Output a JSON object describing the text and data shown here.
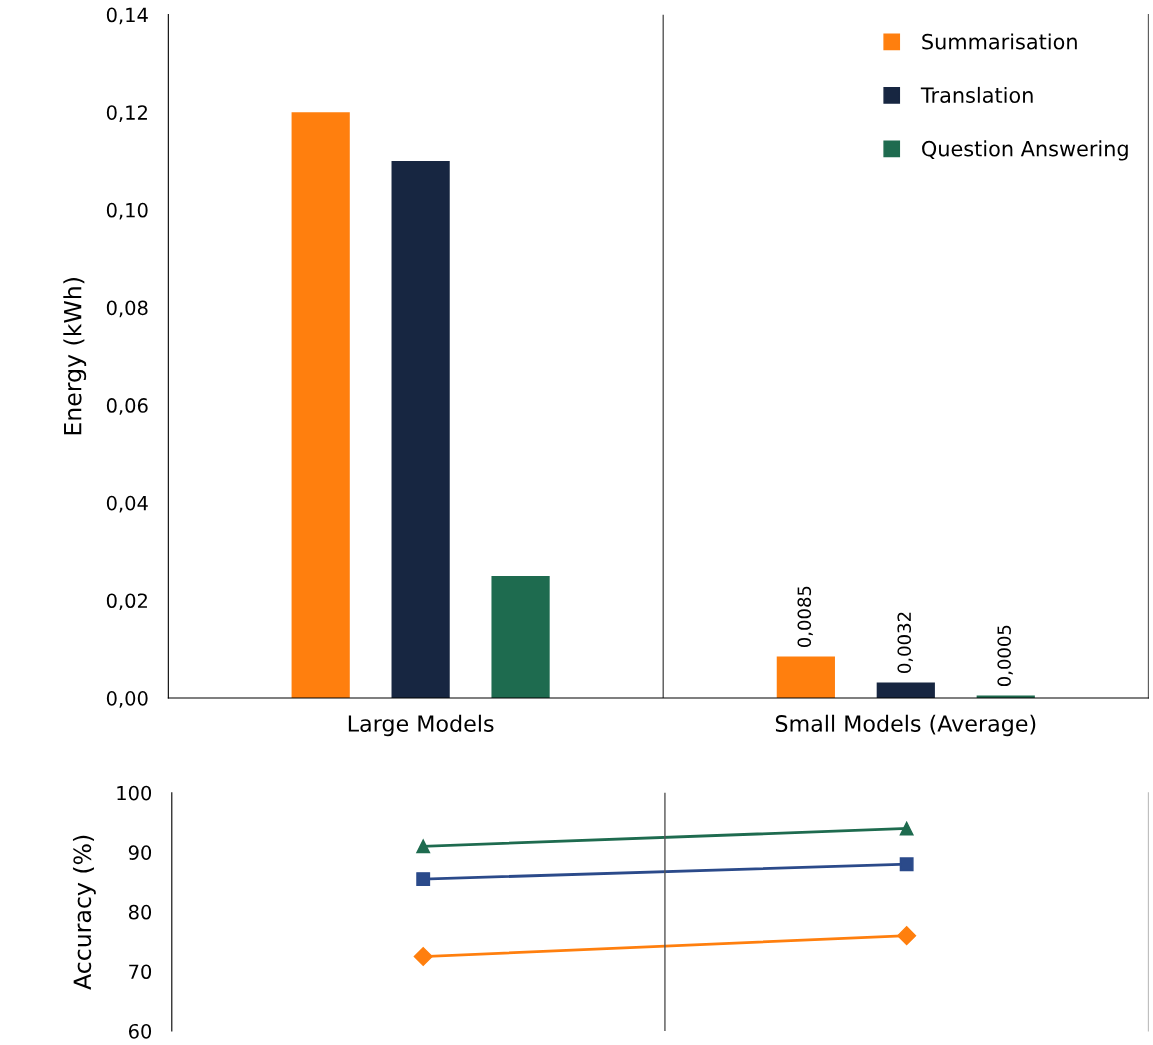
{
  "chart_data": [
    {
      "type": "bar",
      "ylabel": "Energy (kWh)",
      "categories": [
        "Large Models",
        "Small Models (Average)"
      ],
      "series": [
        {
          "name": "Summarisation",
          "color": "#ff7f0e",
          "values": [
            0.12,
            0.0085
          ],
          "value_labels": [
            null,
            "0,0085"
          ]
        },
        {
          "name": "Translation",
          "color": "#172641",
          "values": [
            0.11,
            0.0032
          ],
          "value_labels": [
            null,
            "0,0032"
          ]
        },
        {
          "name": "Question Answering",
          "color": "#1e6b4f",
          "values": [
            0.025,
            0.0005
          ],
          "value_labels": [
            null,
            "0,0005"
          ]
        }
      ],
      "ylim": [
        0,
        0.14
      ],
      "yticks": [
        {
          "value": 0,
          "label": "0,00"
        },
        {
          "value": 0.02,
          "label": "0,02"
        },
        {
          "value": 0.04,
          "label": "0,04"
        },
        {
          "value": 0.06,
          "label": "0,06"
        },
        {
          "value": 0.08,
          "label": "0,08"
        },
        {
          "value": 0.1,
          "label": "0,10"
        },
        {
          "value": 0.12,
          "label": "0,12"
        },
        {
          "value": 0.14,
          "label": "0,14"
        }
      ],
      "legend": "top right",
      "grid": false
    },
    {
      "type": "line",
      "ylabel": "Accuracy (%)",
      "categories": [
        null,
        null
      ],
      "series": [
        {
          "color": "#ff7f0e",
          "values": [
            72.5,
            76
          ],
          "marker": "diamond"
        },
        {
          "color": "#2b4a8a",
          "values": [
            85.5,
            88
          ],
          "marker": "square"
        },
        {
          "color": "#1e6b4f",
          "values": [
            91,
            94
          ],
          "marker": "triangle"
        }
      ],
      "ylim": [
        60,
        100
      ],
      "yticks": [
        60,
        70,
        80,
        90,
        100
      ],
      "tick_labels": "y",
      "grid": false
    }
  ]
}
